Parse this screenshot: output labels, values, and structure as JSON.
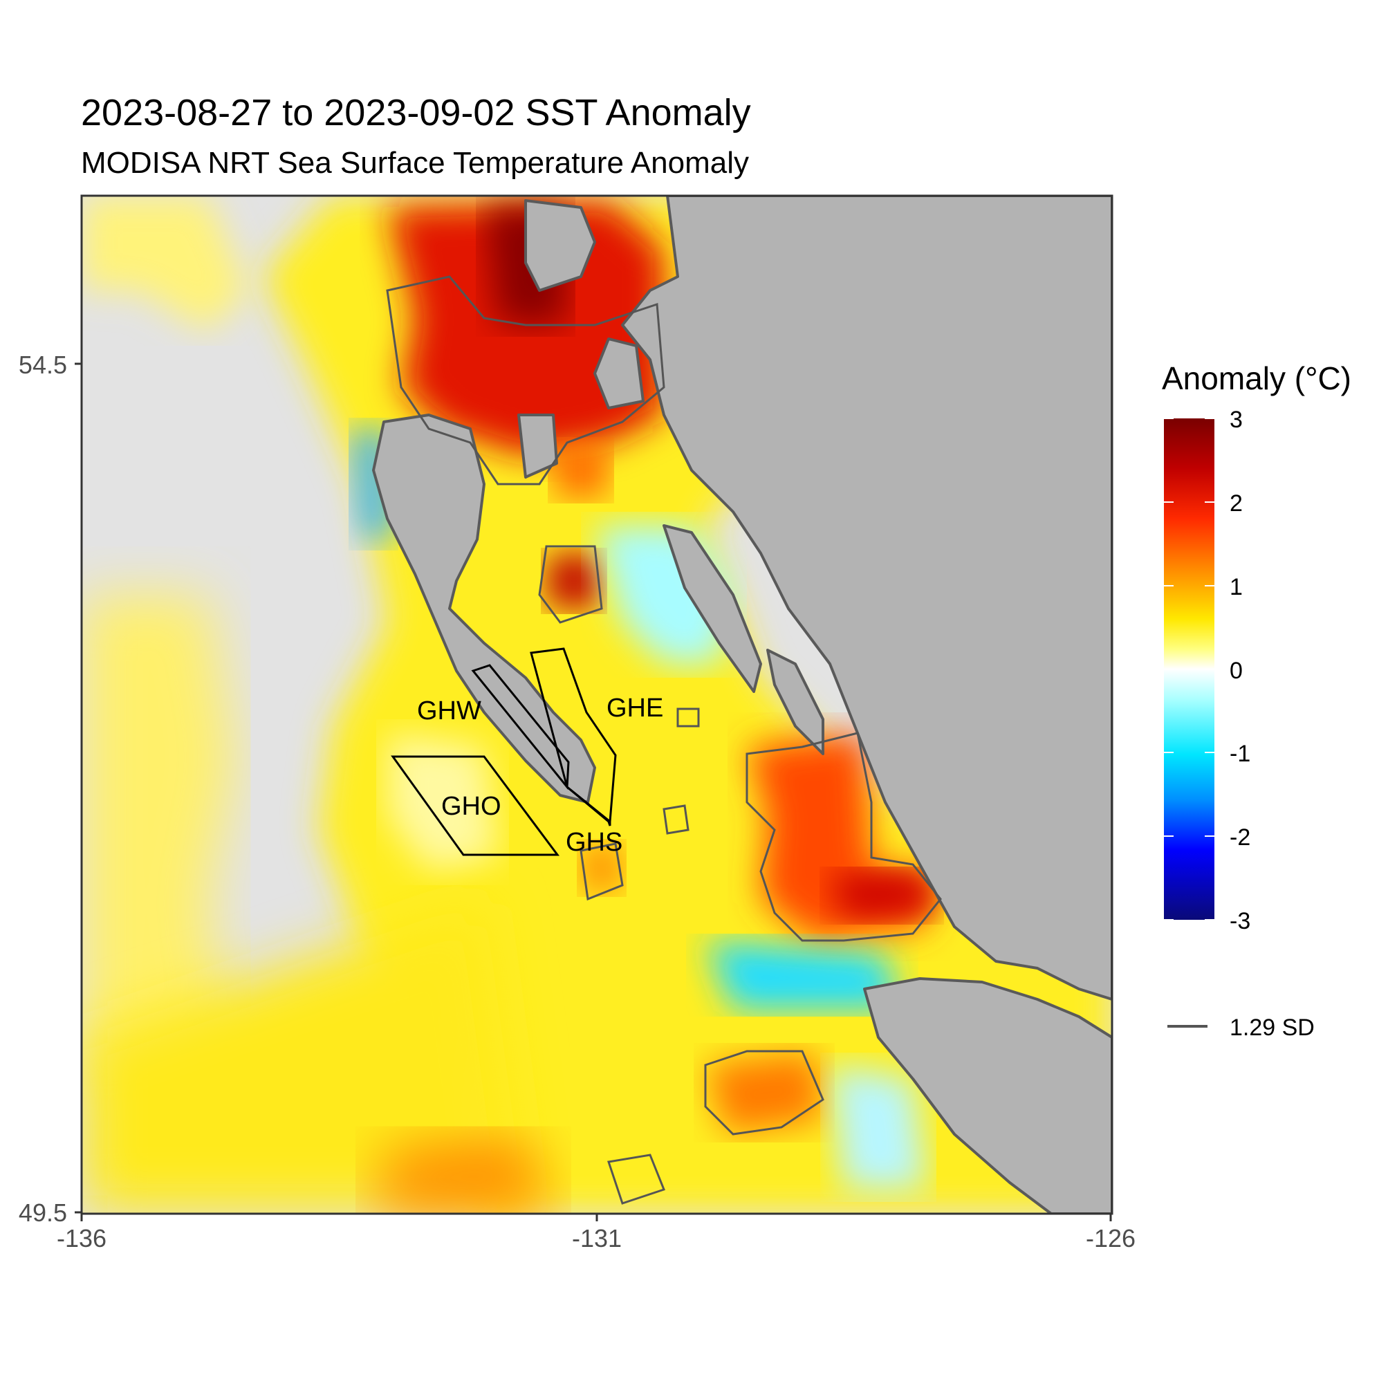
{
  "title": "2023-08-27 to 2023-09-02 SST Anomaly",
  "subtitle": "MODISA NRT Sea Surface Temperature Anomaly",
  "x_axis": {
    "ticks": [
      "-136",
      "-131",
      "-126"
    ]
  },
  "y_axis": {
    "ticks": [
      "54.5",
      "49.5"
    ]
  },
  "legend": {
    "title": "Anomaly (°C)",
    "ticks": [
      "3",
      "2",
      "1",
      "0",
      "-1",
      "-2",
      "-3"
    ],
    "contour_label": "1.29 SD"
  },
  "regions": [
    "GHW",
    "GHE",
    "GHO",
    "GHS"
  ],
  "colors": {
    "land": "#b3b3b3",
    "no_data": "#e3e3e3",
    "coast": "#5a5a5a",
    "scale": [
      "#0a0a78",
      "#0000ff",
      "#00e6ff",
      "#ffffff",
      "#ffff00",
      "#ff5a00",
      "#e00000",
      "#7a0000"
    ]
  },
  "chart_data": {
    "type": "heatmap",
    "title": "2023-08-27 to 2023-09-02 SST Anomaly",
    "subtitle": "MODISA NRT Sea Surface Temperature Anomaly",
    "xlim": [
      -136,
      -126
    ],
    "ylim": [
      49.5,
      54.5
    ],
    "x_ticks": [
      -136,
      -131,
      -126
    ],
    "y_ticks": [
      49.5,
      54.5
    ],
    "colorbar": {
      "title": "Anomaly (°C)",
      "range": [
        -3,
        3
      ],
      "ticks": [
        3,
        2,
        1,
        0,
        -1,
        -2,
        -3
      ]
    },
    "contour": "1.29 SD",
    "region_labels": [
      "GHW",
      "GHE",
      "GHO",
      "GHS"
    ]
  }
}
